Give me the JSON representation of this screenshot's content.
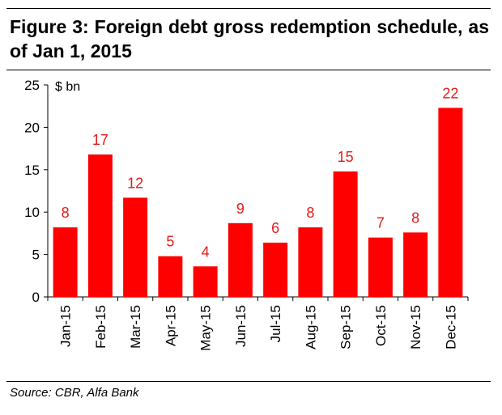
{
  "title": "Figure 3: Foreign debt gross redemption schedule, as of Jan 1, 2015",
  "source": "Source: CBR, Alfa Bank",
  "colors": {
    "bar": "#ff0000",
    "label": "#e41a1a",
    "axis": "#000000"
  },
  "chart_data": {
    "type": "bar",
    "title": "",
    "unit_label": "$ bn",
    "categories": [
      "Jan-15",
      "Feb-15",
      "Mar-15",
      "Apr-15",
      "May-15",
      "Jun-15",
      "Jul-15",
      "Aug-15",
      "Sep-15",
      "Oct-15",
      "Nov-15",
      "Dec-15"
    ],
    "values": [
      8.2,
      16.8,
      11.7,
      4.8,
      3.6,
      8.7,
      6.4,
      8.2,
      14.8,
      7.0,
      7.6,
      22.3
    ],
    "data_labels": [
      "8",
      "17",
      "12",
      "5",
      "4",
      "9",
      "6",
      "8",
      "15",
      "7",
      "8",
      "22"
    ],
    "ylim": [
      0,
      25
    ],
    "yticks": [
      0,
      5,
      10,
      15,
      20,
      25
    ],
    "grid": false,
    "legend": false
  }
}
